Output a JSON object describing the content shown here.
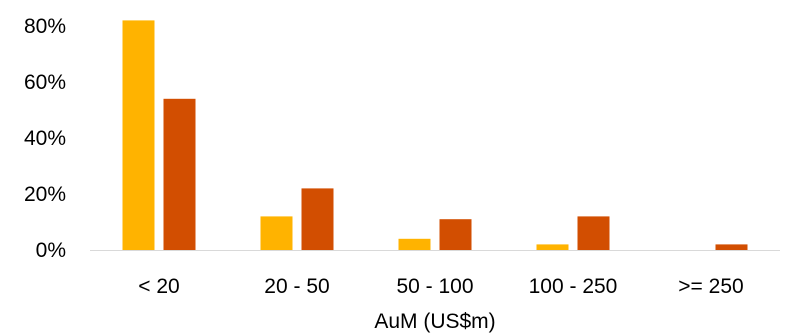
{
  "chart_data": {
    "type": "bar",
    "title": "",
    "xlabel": "AuM (US$m)",
    "ylabel": "",
    "categories": [
      "< 20",
      "20 - 50",
      "50 - 100",
      "100 - 250",
      ">= 250"
    ],
    "series": [
      {
        "values": [
          82,
          12,
          4,
          2,
          0
        ],
        "color": "#FFB300"
      },
      {
        "values": [
          54,
          22,
          11,
          12,
          2
        ],
        "color": "#D24E01"
      }
    ],
    "ylim": [
      0,
      80
    ],
    "yticks": [
      {
        "value": 0,
        "label": "0%"
      },
      {
        "value": 20,
        "label": "20%"
      },
      {
        "value": 40,
        "label": "40%"
      },
      {
        "value": 60,
        "label": "60%"
      },
      {
        "value": 80,
        "label": "80%"
      }
    ],
    "grid": false,
    "legend": "none",
    "axis_color": "#D9D9D9"
  }
}
